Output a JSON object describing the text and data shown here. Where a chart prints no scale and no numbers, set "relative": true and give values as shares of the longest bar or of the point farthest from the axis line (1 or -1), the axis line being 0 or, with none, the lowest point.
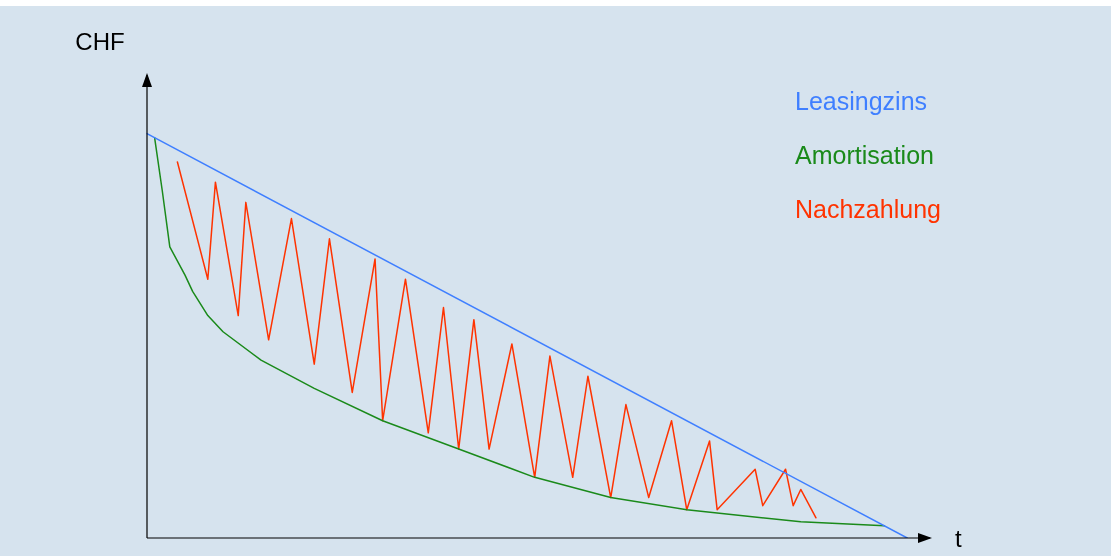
{
  "chart_data": {
    "type": "line",
    "relative": true,
    "xlabel": "t",
    "ylabel": "CHF",
    "marker": "none",
    "line_style": "solid",
    "categories": [
      null,
      null,
      null,
      null,
      null,
      null,
      null,
      null,
      null,
      null,
      null,
      null,
      null,
      null,
      null,
      null,
      null,
      null,
      null,
      null,
      null,
      null,
      null,
      null,
      null,
      null,
      null,
      null,
      null,
      null,
      null,
      null,
      null,
      null,
      null,
      null,
      null,
      null,
      null,
      null,
      null,
      null,
      null,
      null,
      null,
      null,
      null,
      null,
      null,
      null,
      null,
      null,
      null,
      null,
      null,
      null,
      null,
      null,
      null,
      null,
      null,
      null,
      null,
      null,
      null,
      null,
      null,
      null,
      null,
      null,
      null,
      null,
      null,
      null,
      null,
      null,
      null,
      null,
      null,
      null,
      null,
      null,
      null,
      null,
      null,
      null,
      null,
      null,
      null,
      null,
      null,
      null,
      null,
      null,
      null,
      null,
      null,
      null,
      null,
      null,
      null,
      null,
      null,
      null
    ],
    "series": [
      {
        "name": "Leasingzins",
        "color": "#3f7fff",
        "values": [
          1,
          null,
          null,
          null,
          null,
          null,
          null,
          null,
          null,
          null,
          null,
          null,
          null,
          null,
          null,
          null,
          null,
          null,
          null,
          null,
          null,
          null,
          null,
          null,
          null,
          null,
          null,
          null,
          null,
          null,
          null,
          null,
          null,
          null,
          null,
          null,
          null,
          null,
          null,
          null,
          null,
          null,
          null,
          null,
          null,
          null,
          null,
          null,
          null,
          null,
          null,
          null,
          null,
          null,
          null,
          null,
          null,
          null,
          null,
          null,
          null,
          null,
          null,
          null,
          null,
          null,
          null,
          null,
          null,
          null,
          null,
          null,
          null,
          null,
          null,
          null,
          null,
          null,
          null,
          null,
          null,
          null,
          null,
          null,
          null,
          null,
          null,
          null,
          null,
          null,
          null,
          null,
          null,
          null,
          null,
          null,
          null,
          null,
          null,
          null,
          0,
          null,
          null,
          null
        ]
      },
      {
        "name": "Amortisation",
        "color": "#1a8a1a",
        "values": [
          null,
          0.99,
          0.86,
          0.72,
          null,
          0.65,
          0.61,
          null,
          0.55,
          null,
          0.51,
          null,
          null,
          null,
          null,
          0.44,
          null,
          null,
          null,
          null,
          null,
          null,
          0.37,
          null,
          null,
          null,
          null,
          null,
          null,
          null,
          null,
          0.29,
          null,
          null,
          null,
          null,
          null,
          null,
          null,
          null,
          null,
          0.22,
          null,
          null,
          null,
          null,
          null,
          null,
          null,
          null,
          null,
          0.15,
          null,
          null,
          null,
          null,
          null,
          null,
          null,
          null,
          null,
          0.1,
          null,
          null,
          null,
          null,
          null,
          null,
          null,
          null,
          null,
          0.07,
          null,
          null,
          null,
          null,
          null,
          null,
          null,
          null,
          null,
          null,
          null,
          null,
          null,
          null,
          0.04,
          null,
          null,
          null,
          null,
          null,
          null,
          null,
          null,
          null,
          null,
          0.03,
          null,
          null,
          null,
          null,
          null,
          null
        ]
      },
      {
        "name": "Nachzahlung",
        "color": "#ff3300",
        "values": [
          null,
          null,
          null,
          null,
          0.93,
          null,
          null,
          null,
          0.64,
          0.88,
          null,
          null,
          0.55,
          0.83,
          null,
          null,
          0.49,
          null,
          null,
          0.79,
          null,
          null,
          0.43,
          null,
          0.74,
          null,
          null,
          0.36,
          null,
          null,
          0.69,
          0.29,
          null,
          null,
          0.64,
          null,
          null,
          0.26,
          null,
          0.57,
          null,
          0.22,
          null,
          0.54,
          null,
          0.22,
          null,
          null,
          0.48,
          null,
          null,
          0.15,
          null,
          0.45,
          null,
          null,
          0.15,
          null,
          0.4,
          null,
          null,
          0.1,
          null,
          0.33,
          null,
          null,
          0.1,
          null,
          null,
          0.29,
          null,
          0.07,
          null,
          null,
          0.24,
          0.07,
          null,
          null,
          null,
          null,
          0.17,
          0.08,
          null,
          null,
          0.17,
          0.08,
          0.12,
          null,
          0.05,
          null,
          null,
          null,
          null,
          null,
          null,
          null,
          null,
          null,
          null,
          null,
          null,
          null,
          null,
          null
        ]
      }
    ]
  }
}
